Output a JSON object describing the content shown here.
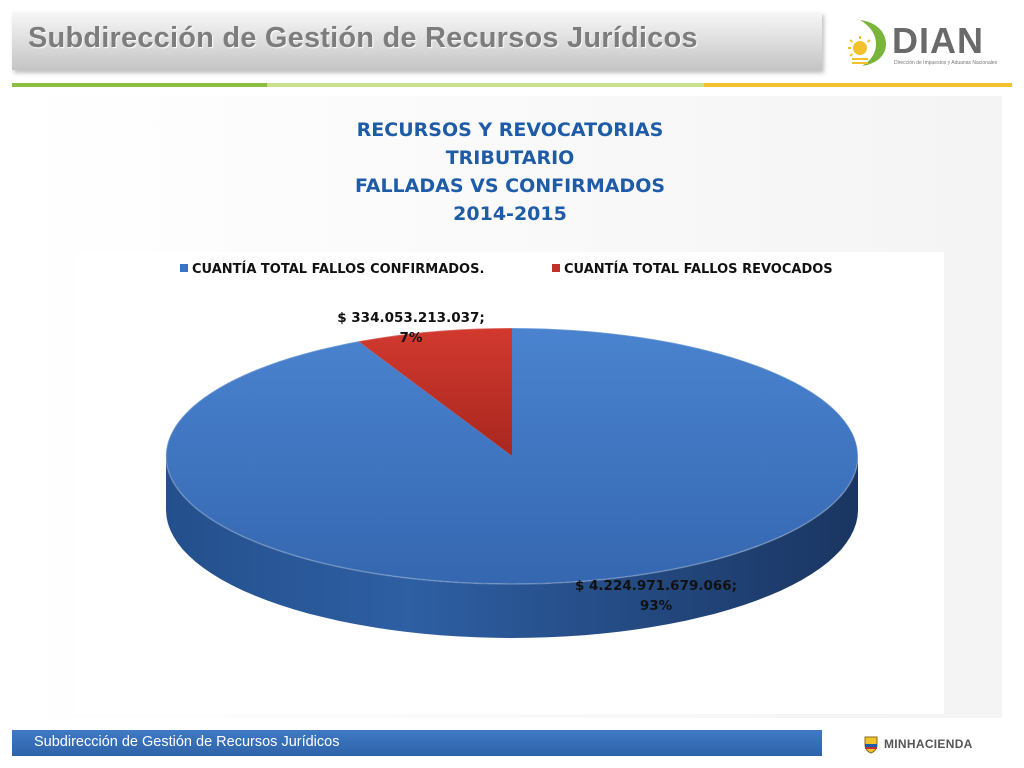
{
  "header": {
    "title": "Subdirección de Gestión de Recursos Jurídicos",
    "logo_text": "DIAN",
    "logo_subtext": "Dirección de Impuestos y Aduanas Nacionales"
  },
  "colors": {
    "stripe_green": "#8cbf3f",
    "stripe_lightgreen": "#c9e08f",
    "stripe_yellow": "#f2c12e",
    "title_blue": "#1f5ca8",
    "series_blue": "#3a73c2",
    "series_red": "#c0312b"
  },
  "chart_data": {
    "type": "pie",
    "title_lines": [
      "RECURSOS Y REVOCATORIAS",
      "TRIBUTARIO",
      "FALLADAS VS CONFIRMADOS",
      "2014-2015"
    ],
    "legend_position": "top",
    "series": [
      {
        "name": "CUANTÍA TOTAL  FALLOS CONFIRMADOS.",
        "value": 4224971679066,
        "label": "$ 4.224.971.679.066;",
        "percent_label": "93%",
        "color": "#3a73c2"
      },
      {
        "name": "CUANTÍA TOTAL FALLOS REVOCADOS",
        "value": 334053213037,
        "label": "$ 334.053.213.037;",
        "percent_label": "7%",
        "color": "#c0312b"
      }
    ]
  },
  "footer": {
    "text": "Subdirección de Gestión de Recursos Jurídicos",
    "logo_text": "MINHACIENDA"
  }
}
